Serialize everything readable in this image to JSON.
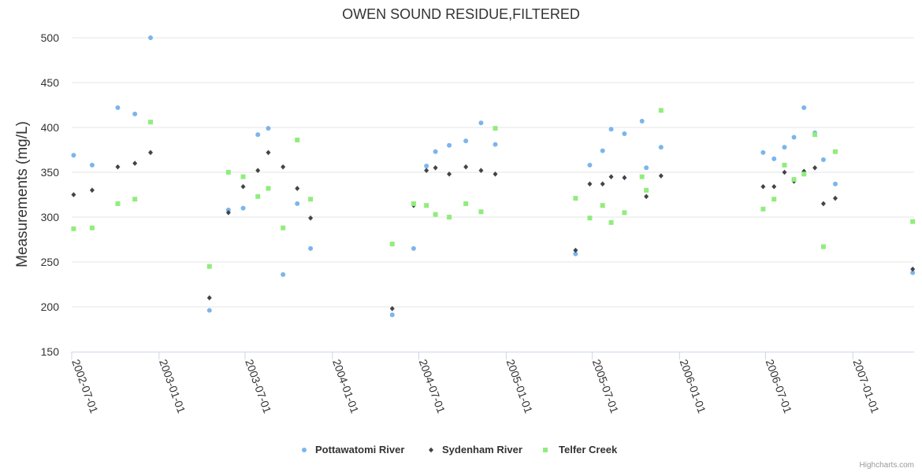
{
  "chart_data": {
    "type": "scatter",
    "title": "OWEN SOUND RESIDUE,FILTERED",
    "xlabel": "",
    "ylabel": "Measurements (mg/L)",
    "ylim": [
      150,
      500
    ],
    "yticks": [
      150,
      200,
      250,
      300,
      350,
      400,
      450,
      500
    ],
    "xlim": [
      "2002-07-01",
      "2007-05-10"
    ],
    "xticks": [
      "2002-07-01",
      "2003-01-01",
      "2003-07-01",
      "2004-01-01",
      "2004-07-01",
      "2005-01-01",
      "2005-07-01",
      "2006-01-01",
      "2006-07-01",
      "2007-01-01"
    ],
    "grid": "horizontal",
    "legend": "bottom-center",
    "credits": "Highcharts.com",
    "series": [
      {
        "name": "Pottawatomi River",
        "color": "#7cb5ec",
        "marker": "circle",
        "points": [
          [
            "2002-07-05",
            369
          ],
          [
            "2002-08-13",
            358
          ],
          [
            "2002-10-06",
            422
          ],
          [
            "2002-11-11",
            415
          ],
          [
            "2002-12-14",
            500
          ],
          [
            "2003-04-17",
            196
          ],
          [
            "2003-05-27",
            308
          ],
          [
            "2003-06-27",
            310
          ],
          [
            "2003-07-28",
            392
          ],
          [
            "2003-08-19",
            399
          ],
          [
            "2003-09-19",
            236
          ],
          [
            "2003-10-19",
            315
          ],
          [
            "2003-11-16",
            265
          ],
          [
            "2004-05-06",
            191
          ],
          [
            "2004-06-20",
            265
          ],
          [
            "2004-07-17",
            357
          ],
          [
            "2004-08-05",
            373
          ],
          [
            "2004-09-03",
            380
          ],
          [
            "2004-10-08",
            385
          ],
          [
            "2004-11-09",
            405
          ],
          [
            "2004-12-09",
            381
          ],
          [
            "2005-05-27",
            259
          ],
          [
            "2005-06-26",
            358
          ],
          [
            "2005-07-23",
            374
          ],
          [
            "2005-08-10",
            398
          ],
          [
            "2005-09-07",
            393
          ],
          [
            "2005-10-14",
            407
          ],
          [
            "2005-10-23",
            355
          ],
          [
            "2005-11-23",
            378
          ],
          [
            "2006-06-26",
            372
          ],
          [
            "2006-07-19",
            365
          ],
          [
            "2006-08-10",
            378
          ],
          [
            "2006-08-30",
            389
          ],
          [
            "2006-09-20",
            422
          ],
          [
            "2006-10-13",
            394
          ],
          [
            "2006-10-31",
            364
          ],
          [
            "2006-11-25",
            337
          ],
          [
            "2007-05-07",
            238
          ]
        ]
      },
      {
        "name": "Sydenham River",
        "color": "#434348",
        "marker": "diamond",
        "points": [
          [
            "2002-07-05",
            325
          ],
          [
            "2002-08-13",
            330
          ],
          [
            "2002-10-06",
            356
          ],
          [
            "2002-11-11",
            360
          ],
          [
            "2002-12-14",
            372
          ],
          [
            "2003-04-17",
            210
          ],
          [
            "2003-05-27",
            305
          ],
          [
            "2003-06-27",
            334
          ],
          [
            "2003-07-28",
            352
          ],
          [
            "2003-08-19",
            372
          ],
          [
            "2003-09-19",
            356
          ],
          [
            "2003-10-19",
            332
          ],
          [
            "2003-11-16",
            299
          ],
          [
            "2004-05-06",
            198
          ],
          [
            "2004-06-20",
            313
          ],
          [
            "2004-07-17",
            352
          ],
          [
            "2004-08-05",
            355
          ],
          [
            "2004-09-03",
            348
          ],
          [
            "2004-10-08",
            356
          ],
          [
            "2004-11-09",
            352
          ],
          [
            "2004-12-09",
            348
          ],
          [
            "2005-05-27",
            263
          ],
          [
            "2005-06-26",
            337
          ],
          [
            "2005-07-23",
            337
          ],
          [
            "2005-08-10",
            345
          ],
          [
            "2005-09-07",
            344
          ],
          [
            "2005-10-23",
            323
          ],
          [
            "2005-11-23",
            346
          ],
          [
            "2006-06-26",
            334
          ],
          [
            "2006-07-19",
            334
          ],
          [
            "2006-08-10",
            350
          ],
          [
            "2006-08-30",
            340
          ],
          [
            "2006-09-20",
            351
          ],
          [
            "2006-10-13",
            355
          ],
          [
            "2006-10-31",
            315
          ],
          [
            "2006-11-25",
            321
          ],
          [
            "2007-05-07",
            242
          ]
        ]
      },
      {
        "name": "Telfer Creek",
        "color": "#90ed7d",
        "marker": "square",
        "points": [
          [
            "2002-07-05",
            287
          ],
          [
            "2002-08-13",
            288
          ],
          [
            "2002-10-06",
            315
          ],
          [
            "2002-11-11",
            320
          ],
          [
            "2002-12-14",
            406
          ],
          [
            "2003-04-17",
            245
          ],
          [
            "2003-05-27",
            350
          ],
          [
            "2003-06-27",
            345
          ],
          [
            "2003-07-28",
            323
          ],
          [
            "2003-08-19",
            332
          ],
          [
            "2003-09-19",
            288
          ],
          [
            "2003-10-19",
            386
          ],
          [
            "2003-11-16",
            320
          ],
          [
            "2004-05-06",
            270
          ],
          [
            "2004-06-20",
            315
          ],
          [
            "2004-07-17",
            313
          ],
          [
            "2004-08-05",
            303
          ],
          [
            "2004-09-03",
            300
          ],
          [
            "2004-10-08",
            315
          ],
          [
            "2004-11-09",
            306
          ],
          [
            "2004-12-09",
            399
          ],
          [
            "2005-05-27",
            321
          ],
          [
            "2005-06-26",
            299
          ],
          [
            "2005-07-23",
            313
          ],
          [
            "2005-08-10",
            294
          ],
          [
            "2005-09-07",
            305
          ],
          [
            "2005-10-14",
            345
          ],
          [
            "2005-10-23",
            330
          ],
          [
            "2005-11-23",
            419
          ],
          [
            "2006-06-26",
            309
          ],
          [
            "2006-07-19",
            320
          ],
          [
            "2006-08-10",
            358
          ],
          [
            "2006-08-30",
            342
          ],
          [
            "2006-09-20",
            348
          ],
          [
            "2006-10-13",
            392
          ],
          [
            "2006-10-31",
            267
          ],
          [
            "2006-11-25",
            373
          ],
          [
            "2007-05-07",
            295
          ]
        ]
      }
    ]
  }
}
